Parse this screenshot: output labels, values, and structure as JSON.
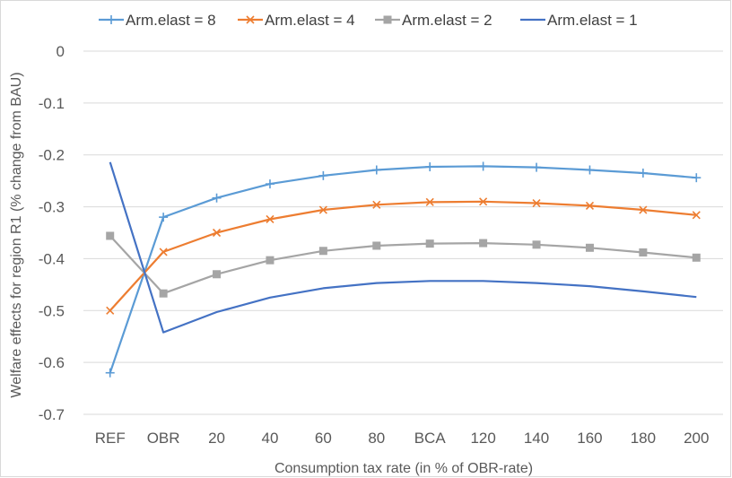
{
  "chart_data": {
    "type": "line",
    "title": "",
    "xlabel": "Consumption tax rate (in % of OBR-rate)",
    "ylabel": "Welfare effects for region R1 (% change from BAU)",
    "categories": [
      "REF",
      "OBR",
      "20",
      "40",
      "60",
      "80",
      "BCA",
      "120",
      "140",
      "160",
      "180",
      "200"
    ],
    "y_ticks": [
      "0",
      "-0.1",
      "-0.2",
      "-0.3",
      "-0.4",
      "-0.5",
      "-0.6",
      "-0.7"
    ],
    "ylim": [
      -0.7,
      0
    ],
    "grid": "horizontal",
    "legend_position": "top",
    "series": [
      {
        "name": "Arm.elast = 8",
        "color": "#5b9bd5",
        "marker": "plus",
        "values": [
          -0.62,
          -0.32,
          -0.283,
          -0.256,
          -0.24,
          -0.229,
          -0.223,
          -0.222,
          -0.224,
          -0.229,
          -0.235,
          -0.244
        ]
      },
      {
        "name": "Arm.elast = 4",
        "color": "#ed7d31",
        "marker": "x",
        "values": [
          -0.5,
          -0.387,
          -0.35,
          -0.324,
          -0.306,
          -0.296,
          -0.291,
          -0.29,
          -0.293,
          -0.298,
          -0.306,
          -0.316
        ]
      },
      {
        "name": "Arm.elast = 2",
        "color": "#a5a5a5",
        "marker": "square",
        "values": [
          -0.356,
          -0.467,
          -0.43,
          -0.403,
          -0.385,
          -0.375,
          -0.371,
          -0.37,
          -0.373,
          -0.379,
          -0.388,
          -0.398
        ]
      },
      {
        "name": "Arm.elast = 1",
        "color": "#4472c4",
        "marker": "none",
        "values": [
          -0.214,
          -0.542,
          -0.503,
          -0.475,
          -0.457,
          -0.447,
          -0.443,
          -0.443,
          -0.447,
          -0.453,
          -0.463,
          -0.474
        ]
      }
    ]
  }
}
